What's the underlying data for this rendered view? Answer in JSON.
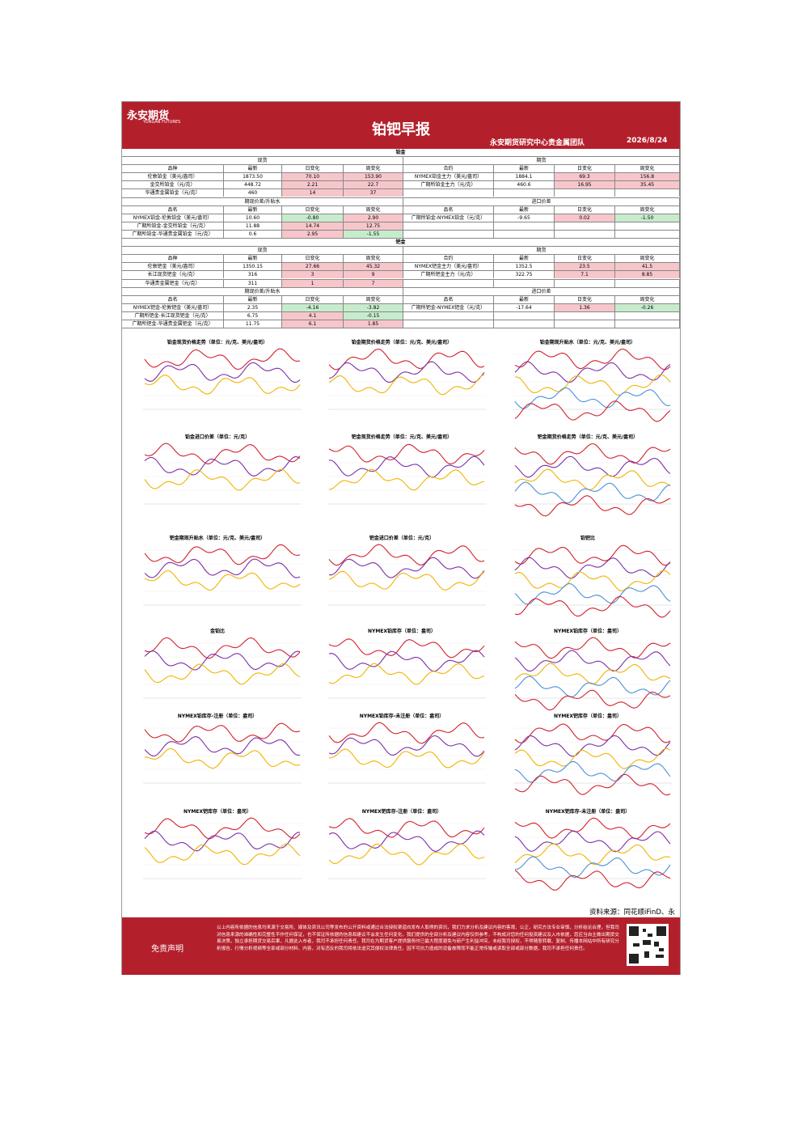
{
  "header": {
    "logo": "永安期货",
    "logo_en": "YONGAN FUTURES",
    "title": "铂钯早报",
    "team": "永安期货研究中心贵金属团队",
    "date": "2026/8/24"
  },
  "table_headers": {
    "spot": [
      "品种",
      "最新",
      "日变化",
      "周变化"
    ],
    "futures": [
      "合约",
      "最新",
      "日变化",
      "周变化"
    ],
    "spread": [
      "品名",
      "最新",
      "日变化",
      "周变化"
    ]
  },
  "sections": [
    {
      "title": "铂金",
      "spot_label": "现货",
      "futures_label": "期货",
      "spread_label": "期现价差/升贴水",
      "import_label": "进口价差",
      "rows": [
        [
          "伦敦铂金（美元/盎司）",
          "1873.50",
          "70.10",
          "153.90",
          "NYMEX铂金主力（美元/盎司）",
          "1884.1",
          "69.3",
          "156.8"
        ],
        [
          "金交所铂金（元/克）",
          "448.72",
          "2.21",
          "22.7",
          "广期所铂金主力（元/克）",
          "460.6",
          "16.95",
          "35.45"
        ],
        [
          "华通贵金属铂金（元/克）",
          "460",
          "14",
          "37",
          null,
          null,
          null,
          null
        ]
      ],
      "rows2": [
        [
          "NYMEX铂金-伦敦铂金（美元/盎司）",
          "10.60",
          "-0.80",
          "2.90",
          "广期所铂金-NYMEX铂金（元/克）",
          "-9.65",
          "0.02",
          "-1.50"
        ],
        [
          "广期所铂金-金交所铂金（元/克）",
          "11.88",
          "14.74",
          "12.75",
          null,
          null,
          null,
          null
        ],
        [
          "广期所铂金-华通贵金属铂金（元/克）",
          "0.6",
          "2.95",
          "-1.55",
          null,
          null,
          null,
          null
        ]
      ]
    },
    {
      "title": "钯金",
      "spot_label": "现货",
      "futures_label": "期货",
      "spread_label": "期现价差/升贴水",
      "import_label": "进口价差",
      "rows": [
        [
          "伦敦钯金（美元/盎司）",
          "1350.15",
          "27.66",
          "45.32",
          "NYMEX钯金主力（美元/盎司）",
          "1352.5",
          "23.5",
          "41.5"
        ],
        [
          "长江现货钯金（元/克）",
          "316",
          "3",
          "9",
          "广期所钯金主力（元/克）",
          "322.75",
          "7.1",
          "8.85"
        ],
        [
          "华通贵金属钯金（元/克）",
          "311",
          "1",
          "7",
          null,
          null,
          null,
          null
        ]
      ],
      "rows2": [
        [
          "NYMEX钯金-伦敦钯金（美元/盎司）",
          "2.35",
          "-4.16",
          "-3.82",
          "广期所钯金-NYMEX钯金（元/克）",
          "-17.64",
          "1.36",
          "-0.26"
        ],
        [
          "广期所钯金-长江现货钯金（元/克）",
          "6.75",
          "4.1",
          "-0.15",
          null,
          null,
          null,
          null
        ],
        [
          "广期所钯金-华通贵金属钯金（元/克）",
          "11.75",
          "6.1",
          "1.85",
          null,
          null,
          null,
          null
        ]
      ]
    }
  ],
  "charts": [
    {
      "title": "铂金现货价格走势（单位：元/克、美元/盎司）"
    },
    {
      "title": "铂金期货价格走势（单位：元/克、美元/盎司）"
    },
    {
      "title": "铂金期现升贴水（单位：元/克、美元/盎司）"
    },
    {
      "title": "铂金进口价差（单位：元/克）"
    },
    {
      "title": "钯金现货价格走势（单位：元/克、美元/盎司）"
    },
    {
      "title": "钯金期货价格走势（单位：元/克、美元/盎司）"
    },
    {
      "title": "钯金期现升贴水（单位：元/克、美元/盎司）"
    },
    {
      "title": "钯金进口价差（单位：元/克）"
    },
    {
      "title": "铂钯比"
    },
    {
      "title": "金铂比"
    },
    {
      "title": "NYMEX铂库存（单位：盎司）"
    },
    {
      "title": "NYMEX铂库存（单位：盎司）"
    },
    {
      "title": "NYMEX铂库存-注册（单位：盎司）"
    },
    {
      "title": "NYMEX铂库存-未注册（单位：盎司）"
    },
    {
      "title": "NYMEX钯库存（单位：盎司）"
    },
    {
      "title": "NYMEX钯库存（单位：盎司）"
    },
    {
      "title": "NYMEX钯库存-注册（单位：盎司）"
    },
    {
      "title": "NYMEX钯库存-未注册（单位：盎司）"
    }
  ],
  "footer": {
    "source": "资料来源：同花顺iFinD、永安源点资讯",
    "disclaimer_title": "免责声明",
    "disclaimer": "以上内容所依据的信息均来源于交易所、媒体及资讯公司等发布的公开资料或通过合法授权渠道向发布人取得的资讯，我们力求分析及建议内容的客观、公正，研究方法专业审慎，分析结论合理，但我司对信息来源的准确性和完整性不作任何保证，也不保证所依据的信息和建议不会发生任何变化。我们提供的全部分析及建议内容仅供参考，不构成对您的任何投资建议及入市依据，您应当自主做出期货交易决策，独立承担期货交易后果，凡据此入市者，我司不承担任何责任。我司在为期货客户提供服务时已最大程度避免与研产生利益冲突，未经我司授权，不得随意转载、复制、传播本网站中所有研究分析报告、行情分析视频等全部或部分材料、内容，对有违反的我司将依法追究其侵权法律责任。因不可抗力造成的设备故障而不能正常传输或读取全部或部分数据，我司不承担任何责任。"
  }
}
